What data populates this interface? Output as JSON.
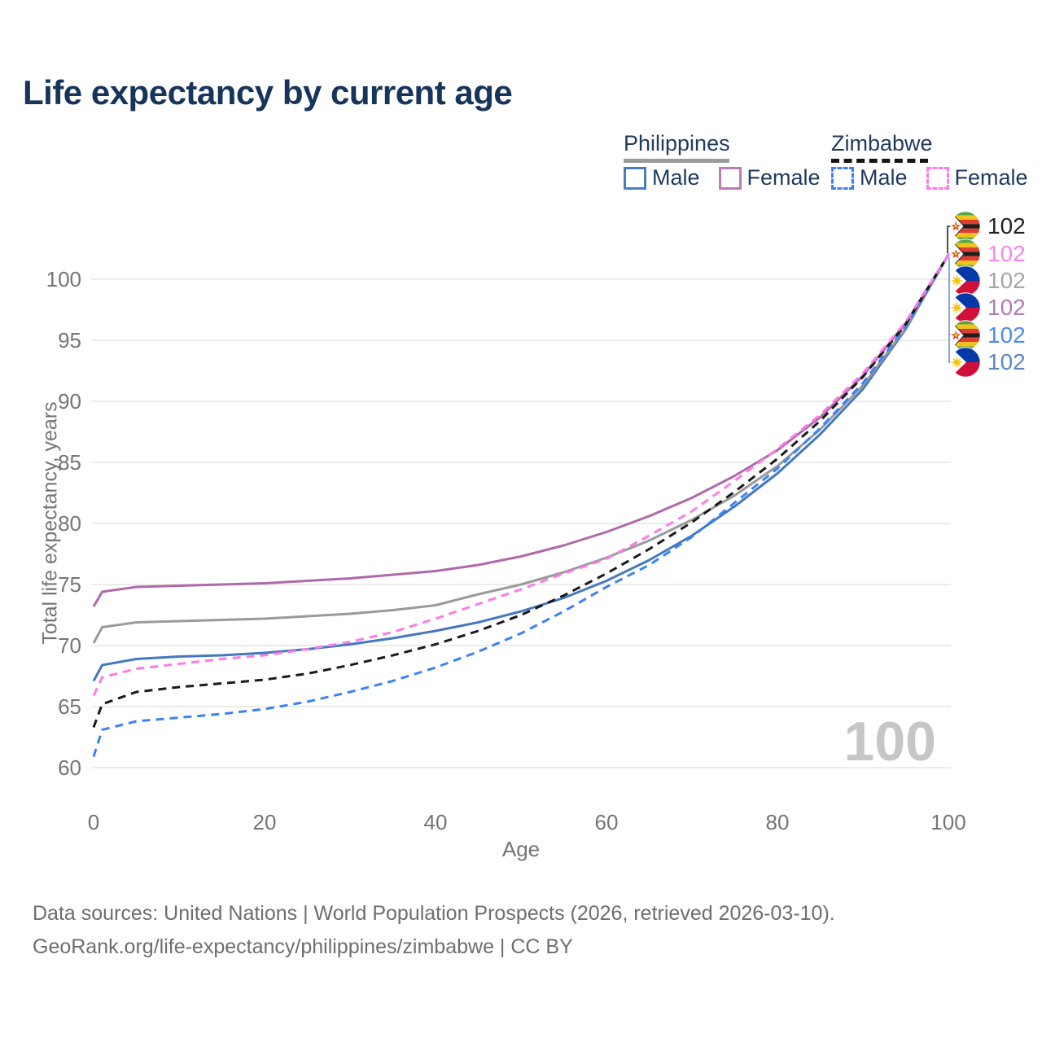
{
  "title": "Life expectancy by current age",
  "watermark_age": "100",
  "legend": {
    "groups": [
      {
        "title": "Philippines",
        "line_color": "#9a9a9a",
        "line_style": "solid",
        "items": [
          {
            "label": "Male",
            "color": "#4a7cc0",
            "style": "solid"
          },
          {
            "label": "Female",
            "color": "#bd7cb5",
            "style": "solid"
          }
        ]
      },
      {
        "title": "Zimbabwe",
        "line_color": "#141414",
        "line_style": "dashed",
        "items": [
          {
            "label": "Male",
            "color": "#3b82f6",
            "style": "dashed"
          },
          {
            "label": "Female",
            "color": "#fb7be8",
            "style": "dashed"
          }
        ]
      }
    ]
  },
  "right_labels": {
    "items": [
      {
        "series": "Zimbabwe",
        "country": "Zimbabwe",
        "value": "102",
        "color": "#222222"
      },
      {
        "series": "Zimbabwe Female",
        "country": "Zimbabwe",
        "value": "102",
        "color": "#fa86ea"
      },
      {
        "series": "Philippines",
        "country": "Philippines",
        "value": "102",
        "color": "#a6a6a6"
      },
      {
        "series": "Philippines Female",
        "country": "Philippines",
        "value": "102",
        "color": "#b27cb5"
      },
      {
        "series": "Zimbabwe Male",
        "country": "Zimbabwe",
        "value": "102",
        "color": "#4b8bf5"
      },
      {
        "series": "Philippines Male",
        "country": "Philippines",
        "value": "102",
        "color": "#5f85c9"
      }
    ]
  },
  "chart_data": {
    "type": "line",
    "title": "Life expectancy by current age",
    "xlabel": "Age",
    "ylabel": "Total life expectancy, years",
    "xlim": [
      0,
      100
    ],
    "ylim": [
      60,
      102
    ],
    "xticks": [
      0,
      20,
      40,
      60,
      80,
      100
    ],
    "yticks": [
      60,
      65,
      70,
      75,
      80,
      85,
      90,
      95,
      100
    ],
    "grid": "horizontal",
    "x": [
      0,
      1,
      5,
      10,
      15,
      20,
      25,
      30,
      35,
      40,
      45,
      50,
      55,
      60,
      65,
      70,
      75,
      80,
      85,
      90,
      95,
      100
    ],
    "series": [
      {
        "name": "Philippines Male",
        "country": "Philippines",
        "sex": "male",
        "style": "solid",
        "color": "#4479bd",
        "values": [
          67.1,
          68.4,
          68.9,
          69.1,
          69.2,
          69.4,
          69.7,
          70.1,
          70.6,
          71.2,
          71.9,
          72.8,
          73.9,
          75.3,
          77.0,
          79.0,
          81.4,
          84.1,
          87.3,
          91.0,
          95.9,
          102
        ]
      },
      {
        "name": "Philippines",
        "country": "Philippines",
        "sex": "both",
        "style": "solid",
        "color": "#9a9a9a",
        "values": [
          70.2,
          71.5,
          71.9,
          72.0,
          72.1,
          72.2,
          72.4,
          72.6,
          72.9,
          73.3,
          74.2,
          75.0,
          76.0,
          77.2,
          78.6,
          80.3,
          82.3,
          84.7,
          87.7,
          91.3,
          96.0,
          102
        ]
      },
      {
        "name": "Philippines Female",
        "country": "Philippines",
        "sex": "female",
        "style": "solid",
        "color": "#b069aa",
        "values": [
          73.2,
          74.4,
          74.8,
          74.9,
          75.0,
          75.1,
          75.3,
          75.5,
          75.8,
          76.1,
          76.6,
          77.3,
          78.2,
          79.3,
          80.6,
          82.1,
          83.9,
          86.0,
          88.7,
          92.1,
          96.4,
          102
        ]
      },
      {
        "name": "Zimbabwe Male",
        "country": "Zimbabwe",
        "sex": "male",
        "style": "dashed",
        "color": "#3b82f6",
        "values": [
          60.9,
          63.1,
          63.8,
          64.1,
          64.4,
          64.8,
          65.4,
          66.2,
          67.1,
          68.2,
          69.5,
          71.0,
          72.8,
          74.8,
          76.6,
          78.9,
          81.7,
          84.5,
          87.8,
          91.5,
          96.1,
          102
        ]
      },
      {
        "name": "Zimbabwe",
        "country": "Zimbabwe",
        "sex": "both",
        "style": "dashed",
        "color": "#1a1a1a",
        "values": [
          63.3,
          65.2,
          66.2,
          66.6,
          66.9,
          67.2,
          67.7,
          68.4,
          69.2,
          70.1,
          71.2,
          72.5,
          74.1,
          75.9,
          77.9,
          80.1,
          82.6,
          85.3,
          88.4,
          92.0,
          96.3,
          102
        ]
      },
      {
        "name": "Zimbabwe Female",
        "country": "Zimbabwe",
        "sex": "female",
        "style": "dashed",
        "color": "#fb7be8",
        "values": [
          65.9,
          67.4,
          68.1,
          68.5,
          68.9,
          69.2,
          69.7,
          70.3,
          71.1,
          72.2,
          73.4,
          74.6,
          75.9,
          77.1,
          79.0,
          81.0,
          83.5,
          86.1,
          88.9,
          92.3,
          96.5,
          102
        ]
      }
    ]
  },
  "footer": {
    "line1": "Data sources: United Nations | World Population Prospects (2026, retrieved 2026-03-10).",
    "line2": "GeoRank.org/life-expectancy/philippines/zimbabwe | CC BY"
  }
}
